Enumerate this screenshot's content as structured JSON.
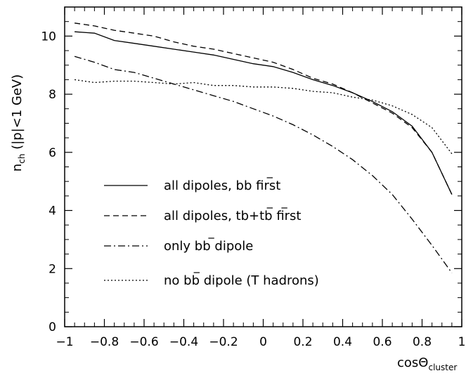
{
  "chart_data": {
    "type": "line",
    "title": "",
    "xlabel": "cosΘ",
    "xlabel_sub": "cluster",
    "ylabel_main": "n",
    "ylabel_sub": "ch",
    "ylabel_rest": " (|p|<1 GeV)",
    "xlim": [
      -1,
      1
    ],
    "ylim": [
      0,
      11
    ],
    "grid": false,
    "legend_position": "lower-left",
    "x_ticks": [
      -1,
      -0.8,
      -0.6,
      -0.4,
      -0.2,
      0,
      0.2,
      0.4,
      0.6,
      0.8,
      1
    ],
    "x_tick_labels": [
      "−1",
      "−0.8",
      "−0.6",
      "−0.4",
      "−0.2",
      "0",
      "0.2",
      "0.4",
      "0.6",
      "0.8",
      "1"
    ],
    "y_ticks": [
      0,
      2,
      4,
      6,
      8,
      10
    ],
    "y_tick_labels": [
      "0",
      "2",
      "4",
      "6",
      "8",
      "10"
    ],
    "x": [
      -0.95,
      -0.85,
      -0.75,
      -0.65,
      -0.55,
      -0.45,
      -0.35,
      -0.25,
      -0.15,
      -0.05,
      0.05,
      0.15,
      0.25,
      0.35,
      0.45,
      0.55,
      0.65,
      0.75,
      0.85,
      0.95
    ],
    "series": [
      {
        "legend": {
          "pre": "all dipoles, b",
          "bar": "b",
          "post": " first"
        },
        "style": "solid",
        "values": [
          10.15,
          10.1,
          9.85,
          9.75,
          9.65,
          9.55,
          9.45,
          9.35,
          9.2,
          9.05,
          8.95,
          8.75,
          8.5,
          8.3,
          8.05,
          7.75,
          7.4,
          6.9,
          6.0,
          4.55
        ]
      },
      {
        "legend": {
          "pre": "all dipoles, t",
          "bar": "b",
          "mid": "+",
          "bar2": "t",
          "post": "b first"
        },
        "style": "dashed",
        "values": [
          10.45,
          10.35,
          10.2,
          10.1,
          10.0,
          9.8,
          9.65,
          9.55,
          9.4,
          9.25,
          9.1,
          8.85,
          8.55,
          8.35,
          8.05,
          7.7,
          7.35,
          6.85,
          6.0,
          4.55
        ]
      },
      {
        "legend": {
          "pre": "only b",
          "bar": "b",
          "post": " dipole"
        },
        "style": "dashdot",
        "values": [
          9.3,
          9.1,
          8.85,
          8.75,
          8.55,
          8.35,
          8.15,
          7.95,
          7.75,
          7.5,
          7.25,
          6.95,
          6.6,
          6.2,
          5.75,
          5.2,
          4.55,
          3.7,
          2.8,
          1.85
        ]
      },
      {
        "legend": {
          "pre": "no b",
          "bar": "b",
          "post": " dipole (T hadrons)"
        },
        "style": "dotted",
        "values": [
          8.5,
          8.4,
          8.45,
          8.45,
          8.4,
          8.35,
          8.4,
          8.3,
          8.3,
          8.25,
          8.25,
          8.2,
          8.1,
          8.05,
          7.9,
          7.8,
          7.6,
          7.3,
          6.85,
          5.95
        ]
      }
    ]
  }
}
